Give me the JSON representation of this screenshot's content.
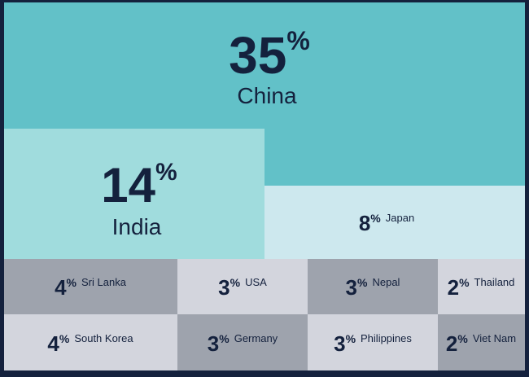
{
  "chart_data": {
    "type": "treemap",
    "categories": [
      "China",
      "India",
      "Japan",
      "Sri Lanka",
      "USA",
      "Nepal",
      "Thailand",
      "South Korea",
      "Germany",
      "Philippines",
      "Viet Nam"
    ],
    "values": [
      35,
      14,
      8,
      4,
      3,
      3,
      2,
      4,
      3,
      3,
      2
    ],
    "unit": "%",
    "colors": [
      "#62c1c8",
      "#a0dcdd",
      "#cde8ee",
      "#9ea3ad",
      "#d3d5dd",
      "#9ea3ad",
      "#d3d5dd",
      "#d3d5dd",
      "#9ea3ad",
      "#d3d5dd",
      "#9ea3ad"
    ]
  }
}
